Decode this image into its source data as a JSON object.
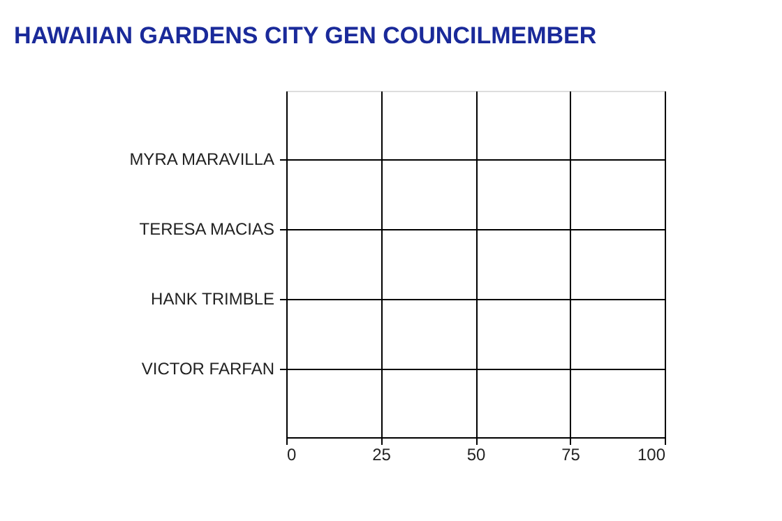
{
  "chart_data": {
    "type": "bar",
    "orientation": "horizontal",
    "title": "HAWAIIAN GARDENS CITY GEN COUNCILMEMBER",
    "categories": [
      "MYRA MARAVILLA",
      "TERESA MACIAS",
      "HANK TRIMBLE",
      "VICTOR FARFAN"
    ],
    "values": [
      0,
      0,
      0,
      0
    ],
    "xlim": [
      0,
      100
    ],
    "xticks": [
      0,
      25,
      50,
      75,
      100
    ],
    "grid": true
  }
}
